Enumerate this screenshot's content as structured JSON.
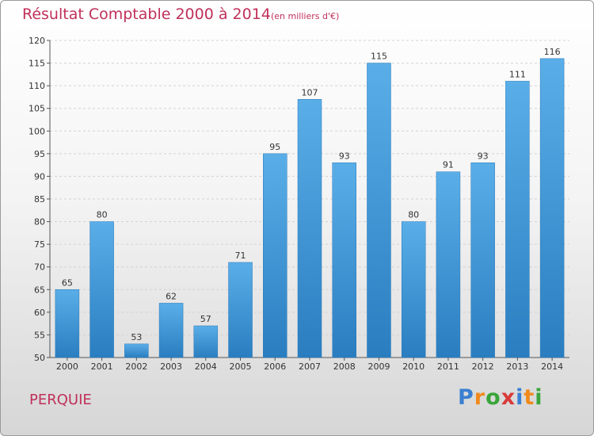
{
  "title": "Résultat Comptable 2000 à 2014",
  "subtitle": "(en milliers d'€)",
  "place": "PERQUIE",
  "logo": {
    "text": "Proxiti",
    "colors": [
      "#3a7fd1",
      "#f08a1c",
      "#3aa53a",
      "#d83a3a",
      "#3a7fd1",
      "#f08a1c",
      "#3aa53a"
    ]
  },
  "colors": {
    "bar_light": "#5aaee8",
    "bar_dark": "#2a7ec0",
    "accent": "#c0305a"
  },
  "chart_data": {
    "type": "bar",
    "title": "Résultat Comptable 2000 à 2014",
    "subtitle": "(en milliers d'€)",
    "categories": [
      "2000",
      "2001",
      "2002",
      "2003",
      "2004",
      "2005",
      "2006",
      "2007",
      "2008",
      "2009",
      "2010",
      "2011",
      "2012",
      "2013",
      "2014"
    ],
    "values": [
      65,
      80,
      53,
      62,
      57,
      71,
      95,
      107,
      93,
      115,
      80,
      91,
      93,
      111,
      116
    ],
    "data_labels": [
      "65",
      "80",
      "53",
      "62",
      "57",
      "71",
      "95",
      "107",
      "93",
      "115",
      "80",
      "91",
      "93",
      "111",
      "116"
    ],
    "yticks": [
      "50",
      "55",
      "60",
      "65",
      "70",
      "75",
      "80",
      "85",
      "90",
      "95",
      "100",
      "105",
      "110",
      "115",
      "120"
    ],
    "ylim": [
      50,
      120
    ],
    "xlabel": "",
    "ylabel": ""
  }
}
